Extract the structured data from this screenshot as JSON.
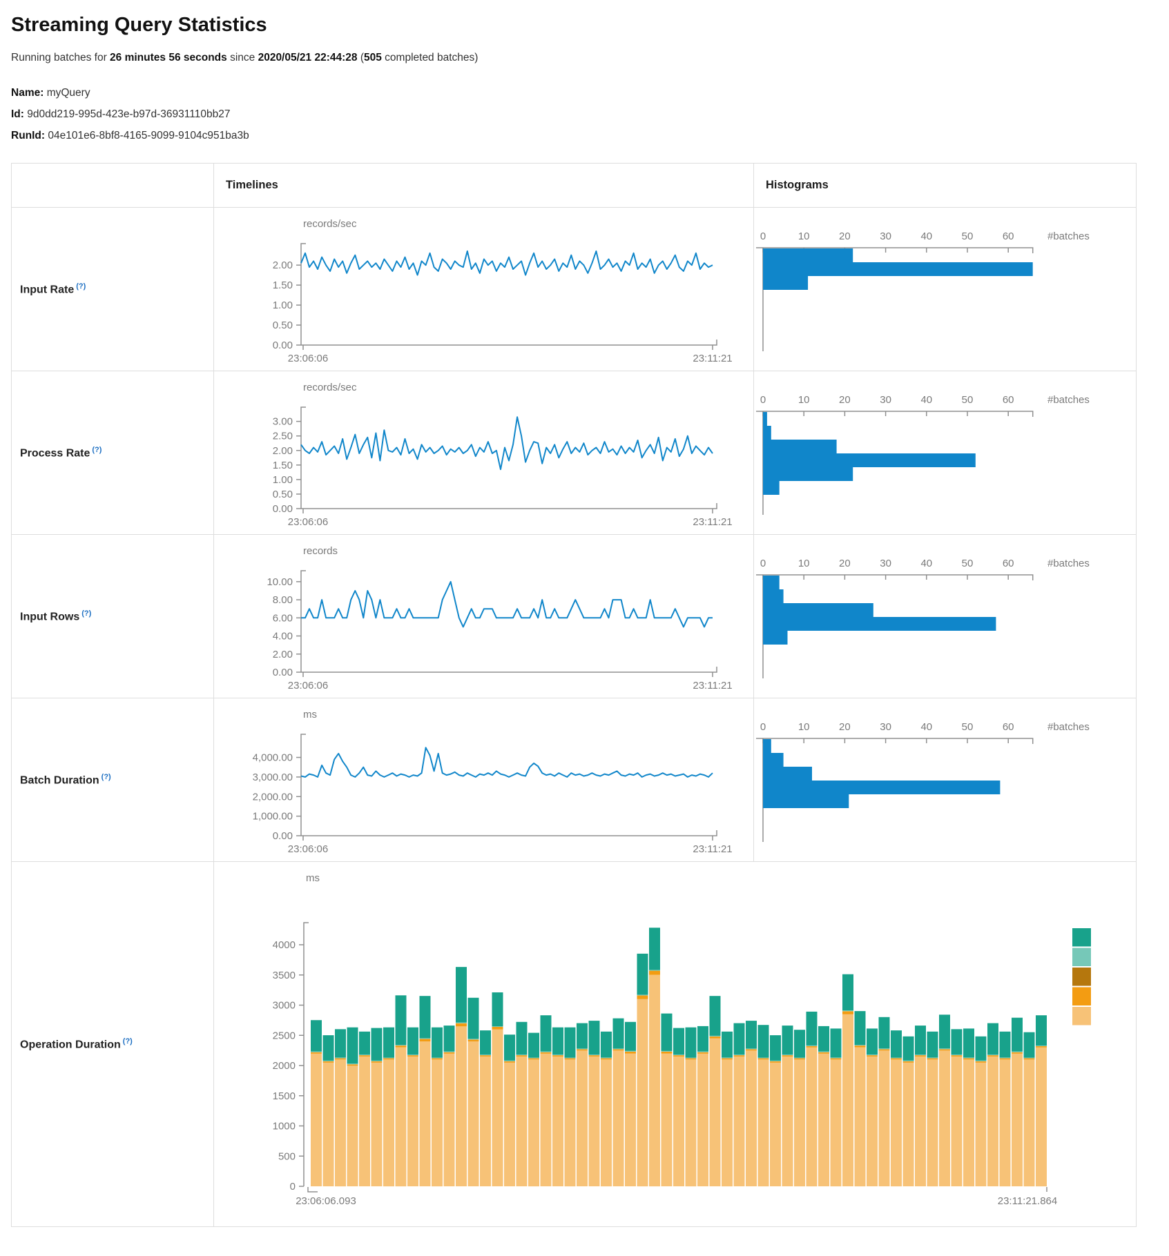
{
  "page": {
    "title": "Streaming Query Statistics",
    "subtitle_parts": [
      "Running batches for ",
      "26 minutes 56 seconds",
      " since ",
      "2020/05/21 22:44:28",
      " (",
      "505",
      " completed batches)"
    ]
  },
  "meta": [
    {
      "label": "Name:",
      "value": "myQuery"
    },
    {
      "label": "Id:",
      "value": "9d0dd219-995d-423e-b97d-36931110bb27"
    },
    {
      "label": "RunId:",
      "value": "04e101e6-8bf8-4165-9099-9104c951ba3b"
    }
  ],
  "table": {
    "col_timelines": "Timelines",
    "col_histograms": "Histograms",
    "help": "(?)"
  },
  "rows": [
    {
      "label": "Input Rate"
    },
    {
      "label": "Process Rate"
    },
    {
      "label": "Input Rows"
    },
    {
      "label": "Batch Duration"
    },
    {
      "label": "Operation Duration"
    }
  ],
  "colors": {
    "blue": "#1086ca",
    "axis": "#8f8f8f",
    "tick_text": "#7a7a7a",
    "teal": "#18a28b",
    "light_teal": "#76c8b8",
    "dark_orange": "#b5770d",
    "orange": "#f39c12",
    "tan": "#f7c277"
  },
  "chart_data": [
    {
      "kind": "timeline",
      "metric": "Input Rate",
      "type": "line",
      "unit": "records/sec",
      "x_range": [
        "23:06:06",
        "23:11:21"
      ],
      "vmax": 2.4,
      "color": "#1086ca",
      "yticks": [
        {
          "v": 2,
          "label": "2.00"
        },
        {
          "v": 1.5,
          "label": "1.50"
        },
        {
          "v": 1,
          "label": "1.00"
        },
        {
          "v": 0.5,
          "label": "0.50"
        },
        {
          "v": 0,
          "label": "0.00"
        }
      ],
      "values": [
        2.05,
        2.3,
        1.95,
        2.1,
        1.9,
        2.2,
        2.0,
        1.85,
        2.15,
        1.95,
        2.1,
        1.8,
        2.05,
        2.25,
        1.9,
        2.0,
        2.1,
        1.95,
        2.05,
        1.9,
        2.15,
        2.0,
        1.85,
        2.1,
        1.95,
        2.2,
        1.9,
        2.05,
        1.75,
        2.1,
        2.0,
        2.3,
        1.95,
        1.85,
        2.15,
        2.05,
        1.9,
        2.1,
        2.0,
        1.95,
        2.35,
        1.9,
        2.05,
        1.8,
        2.15,
        2.0,
        2.1,
        1.85,
        2.05,
        1.95,
        2.2,
        1.9,
        2.0,
        2.1,
        1.75,
        2.05,
        2.3,
        1.95,
        2.1,
        1.9,
        2.0,
        2.15,
        1.85,
        2.05,
        1.95,
        2.25,
        1.9,
        2.1,
        2.0,
        1.8,
        2.05,
        2.35,
        1.9,
        2.0,
        2.15,
        1.95,
        2.05,
        1.85,
        2.1,
        2.0,
        2.3,
        1.9,
        2.05,
        1.95,
        2.15,
        1.8,
        2.0,
        2.1,
        1.9,
        2.05,
        2.25,
        1.95,
        1.85,
        2.1,
        2.0,
        2.3,
        1.9,
        2.05,
        1.95,
        2.0
      ]
    },
    {
      "kind": "histogram",
      "metric": "Input Rate",
      "type": "bar",
      "orientation": "horizontal",
      "xlabel": "#batches",
      "xticks": [
        0,
        10,
        20,
        30,
        40,
        50,
        60
      ],
      "bins": [
        22,
        66,
        11
      ],
      "color": "#1086ca"
    },
    {
      "kind": "timeline",
      "metric": "Process Rate",
      "type": "line",
      "unit": "records/sec",
      "x_range": [
        "23:06:06",
        "23:11:21"
      ],
      "vmax": 3.3,
      "color": "#1086ca",
      "yticks": [
        {
          "v": 3,
          "label": "3.00"
        },
        {
          "v": 2.5,
          "label": "2.50"
        },
        {
          "v": 2,
          "label": "2.00"
        },
        {
          "v": 1.5,
          "label": "1.50"
        },
        {
          "v": 1,
          "label": "1.00"
        },
        {
          "v": 0.5,
          "label": "0.50"
        },
        {
          "v": 0,
          "label": "0.00"
        }
      ],
      "values": [
        2.2,
        2.0,
        1.9,
        2.1,
        1.95,
        2.3,
        1.85,
        2.0,
        2.15,
        1.9,
        2.4,
        1.7,
        2.1,
        2.55,
        1.9,
        2.2,
        2.45,
        1.75,
        2.6,
        1.65,
        2.7,
        2.0,
        1.95,
        2.1,
        1.85,
        2.4,
        1.9,
        2.05,
        1.7,
        2.2,
        1.95,
        2.1,
        1.9,
        2.0,
        2.15,
        1.85,
        2.05,
        1.95,
        2.1,
        1.9,
        2.0,
        2.2,
        1.8,
        2.1,
        1.95,
        2.3,
        1.9,
        2.0,
        1.35,
        2.1,
        1.65,
        2.2,
        3.15,
        2.5,
        1.6,
        2.0,
        2.3,
        2.25,
        1.55,
        2.1,
        1.9,
        2.2,
        1.75,
        2.05,
        2.3,
        1.9,
        2.1,
        1.95,
        2.25,
        1.85,
        2.0,
        2.1,
        1.9,
        2.3,
        1.95,
        2.05,
        1.85,
        2.15,
        1.9,
        2.1,
        1.95,
        2.35,
        1.75,
        2.0,
        2.2,
        1.9,
        2.45,
        1.65,
        2.1,
        1.95,
        2.4,
        1.8,
        2.05,
        2.5,
        1.9,
        2.15,
        2.0,
        1.85,
        2.1,
        1.9
      ]
    },
    {
      "kind": "histogram",
      "metric": "Process Rate",
      "type": "bar",
      "orientation": "horizontal",
      "xlabel": "#batches",
      "xticks": [
        0,
        10,
        20,
        30,
        40,
        50,
        60
      ],
      "bins": [
        1,
        2,
        18,
        52,
        22,
        4
      ],
      "color": "#1086ca"
    },
    {
      "kind": "timeline",
      "metric": "Input Rows",
      "type": "line",
      "unit": "records",
      "x_range": [
        "23:06:06",
        "23:11:21"
      ],
      "vmax": 10.6,
      "color": "#1086ca",
      "yticks": [
        {
          "v": 10,
          "label": "10.00"
        },
        {
          "v": 8,
          "label": "8.00"
        },
        {
          "v": 6,
          "label": "6.00"
        },
        {
          "v": 4,
          "label": "4.00"
        },
        {
          "v": 2,
          "label": "2.00"
        },
        {
          "v": 0,
          "label": "0.00"
        }
      ],
      "values": [
        6,
        6,
        7,
        6,
        6,
        8,
        6,
        6,
        6,
        7,
        6,
        6,
        8,
        9,
        8,
        6,
        9,
        8,
        6,
        8,
        6,
        6,
        6,
        7,
        6,
        6,
        7,
        6,
        6,
        6,
        6,
        6,
        6,
        6,
        8,
        9,
        10,
        8,
        6,
        5,
        6,
        7,
        6,
        6,
        7,
        7,
        7,
        6,
        6,
        6,
        6,
        6,
        7,
        6,
        6,
        6,
        7,
        6,
        8,
        6,
        6,
        7,
        6,
        6,
        6,
        7,
        8,
        7,
        6,
        6,
        6,
        6,
        6,
        7,
        6,
        8,
        8,
        8,
        6,
        6,
        7,
        6,
        6,
        6,
        8,
        6,
        6,
        6,
        6,
        6,
        7,
        6,
        5,
        6,
        6,
        6,
        6,
        5,
        6,
        6
      ]
    },
    {
      "kind": "histogram",
      "metric": "Input Rows",
      "type": "bar",
      "orientation": "horizontal",
      "xlabel": "#batches",
      "xticks": [
        0,
        10,
        20,
        30,
        40,
        50,
        60
      ],
      "bins": [
        4,
        5,
        27,
        57,
        6
      ],
      "color": "#1086ca"
    },
    {
      "kind": "timeline",
      "metric": "Batch Duration",
      "type": "line",
      "unit": "ms",
      "x_range": [
        "23:06:06",
        "23:11:21"
      ],
      "vmax": 4900,
      "color": "#1086ca",
      "yticks": [
        {
          "v": 4000,
          "label": "4,000.00"
        },
        {
          "v": 3000,
          "label": "3,000.00"
        },
        {
          "v": 2000,
          "label": "2,000.00"
        },
        {
          "v": 1000,
          "label": "1,000.00"
        },
        {
          "v": 0,
          "label": "0.00"
        }
      ],
      "values": [
        3050,
        3000,
        3150,
        3100,
        3000,
        3600,
        3200,
        3100,
        3900,
        4200,
        3800,
        3500,
        3100,
        3000,
        3200,
        3500,
        3100,
        3050,
        3300,
        3100,
        3000,
        3100,
        3200,
        3050,
        3150,
        3100,
        3000,
        3100,
        3050,
        3200,
        4500,
        4100,
        3300,
        4200,
        3200,
        3100,
        3150,
        3250,
        3100,
        3050,
        3200,
        3100,
        3000,
        3150,
        3100,
        3200,
        3100,
        3300,
        3150,
        3100,
        3000,
        3100,
        3200,
        3100,
        3050,
        3500,
        3700,
        3550,
        3200,
        3100,
        3150,
        3050,
        3200,
        3100,
        3000,
        3200,
        3100,
        3150,
        3050,
        3100,
        3200,
        3100,
        3050,
        3150,
        3100,
        3200,
        3300,
        3100,
        3050,
        3150,
        3100,
        3200,
        3000,
        3100,
        3150,
        3050,
        3100,
        3200,
        3100,
        3150,
        3050,
        3100,
        3150,
        3000,
        3100,
        3050,
        3150,
        3100,
        3000,
        3200
      ]
    },
    {
      "kind": "histogram",
      "metric": "Batch Duration",
      "type": "bar",
      "orientation": "horizontal",
      "xlabel": "#batches",
      "xticks": [
        0,
        10,
        20,
        30,
        40,
        50,
        60
      ],
      "bins": [
        2,
        5,
        12,
        58,
        21
      ],
      "color": "#1086ca"
    },
    {
      "kind": "stacked",
      "metric": "Operation Duration",
      "type": "stacked-bar",
      "unit": "ms",
      "x_range": [
        "23:06:06.093",
        "23:11:21.864"
      ],
      "yticks": [
        {
          "v": 4000,
          "label": "4000"
        },
        {
          "v": 3500,
          "label": "3500"
        },
        {
          "v": 3000,
          "label": "3000"
        },
        {
          "v": 2500,
          "label": "2500"
        },
        {
          "v": 2000,
          "label": "2000"
        },
        {
          "v": 1500,
          "label": "1500"
        },
        {
          "v": 1000,
          "label": "1000"
        },
        {
          "v": 500,
          "label": "500"
        },
        {
          "v": 0,
          "label": "0"
        }
      ],
      "series": [
        {
          "name": "series-tan",
          "color": "#f7c277",
          "values": [
            2200,
            2050,
            2100,
            2000,
            2150,
            2050,
            2100,
            2300,
            2150,
            2400,
            2100,
            2200,
            2650,
            2400,
            2150,
            2600,
            2050,
            2150,
            2100,
            2200,
            2150,
            2100,
            2250,
            2150,
            2100,
            2250,
            2200,
            3100,
            3500,
            2200,
            2150,
            2100,
            2200,
            2450,
            2100,
            2150,
            2250,
            2100,
            2050,
            2150,
            2100,
            2300,
            2200,
            2100,
            2850,
            2300,
            2150,
            2250,
            2100,
            2050,
            2150,
            2100,
            2250,
            2150,
            2100,
            2050,
            2150,
            2100,
            2200,
            2100,
            2300
          ]
        },
        {
          "name": "series-orange",
          "color": "#f39c12",
          "values": [
            20,
            20,
            20,
            20,
            20,
            20,
            20,
            30,
            20,
            40,
            20,
            20,
            50,
            30,
            20,
            40,
            20,
            20,
            20,
            20,
            20,
            20,
            20,
            20,
            20,
            20,
            30,
            60,
            70,
            30,
            20,
            20,
            20,
            30,
            20,
            20,
            20,
            20,
            20,
            20,
            20,
            20,
            20,
            20,
            50,
            30,
            20,
            20,
            20,
            20,
            20,
            20,
            20,
            20,
            20,
            20,
            20,
            20,
            20,
            20,
            20
          ]
        },
        {
          "name": "series-dark-orange",
          "color": "#b5770d",
          "values": [
            0,
            0,
            0,
            0,
            0,
            0,
            0,
            0,
            0,
            0,
            0,
            0,
            0,
            0,
            0,
            0,
            0,
            0,
            0,
            0,
            0,
            0,
            0,
            0,
            0,
            0,
            0,
            0,
            0,
            0,
            0,
            0,
            0,
            0,
            0,
            0,
            0,
            0,
            0,
            0,
            0,
            0,
            0,
            0,
            0,
            0,
            0,
            0,
            0,
            0,
            0,
            0,
            0,
            0,
            0,
            0,
            0,
            0,
            0,
            0,
            0
          ]
        },
        {
          "name": "series-light-teal",
          "color": "#76c8b8",
          "values": [
            12,
            12,
            12,
            12,
            12,
            12,
            12,
            12,
            12,
            12,
            12,
            12,
            12,
            12,
            12,
            12,
            12,
            12,
            12,
            12,
            12,
            12,
            12,
            12,
            12,
            12,
            12,
            12,
            12,
            12,
            12,
            12,
            12,
            12,
            12,
            12,
            12,
            12,
            12,
            12,
            12,
            12,
            12,
            12,
            12,
            12,
            12,
            12,
            12,
            12,
            12,
            12,
            12,
            12,
            12,
            12,
            12,
            12,
            12,
            12,
            12
          ]
        },
        {
          "name": "series-teal",
          "color": "#18a28b",
          "values": [
            520,
            420,
            470,
            600,
            380,
            540,
            500,
            820,
            450,
            700,
            500,
            430,
            920,
            680,
            400,
            560,
            430,
            540,
            410,
            600,
            450,
            500,
            420,
            560,
            430,
            500,
            480,
            680,
            700,
            620,
            440,
            500,
            420,
            660,
            430,
            520,
            460,
            540,
            420,
            480,
            460,
            560,
            420,
            480,
            600,
            560,
            430,
            520,
            450,
            400,
            480,
            430,
            560,
            420,
            480,
            400,
            520,
            430,
            560,
            420,
            500
          ]
        }
      ],
      "legend_colors": [
        "#18a28b",
        "#76c8b8",
        "#b5770d",
        "#f39c12",
        "#f7c277"
      ]
    }
  ]
}
